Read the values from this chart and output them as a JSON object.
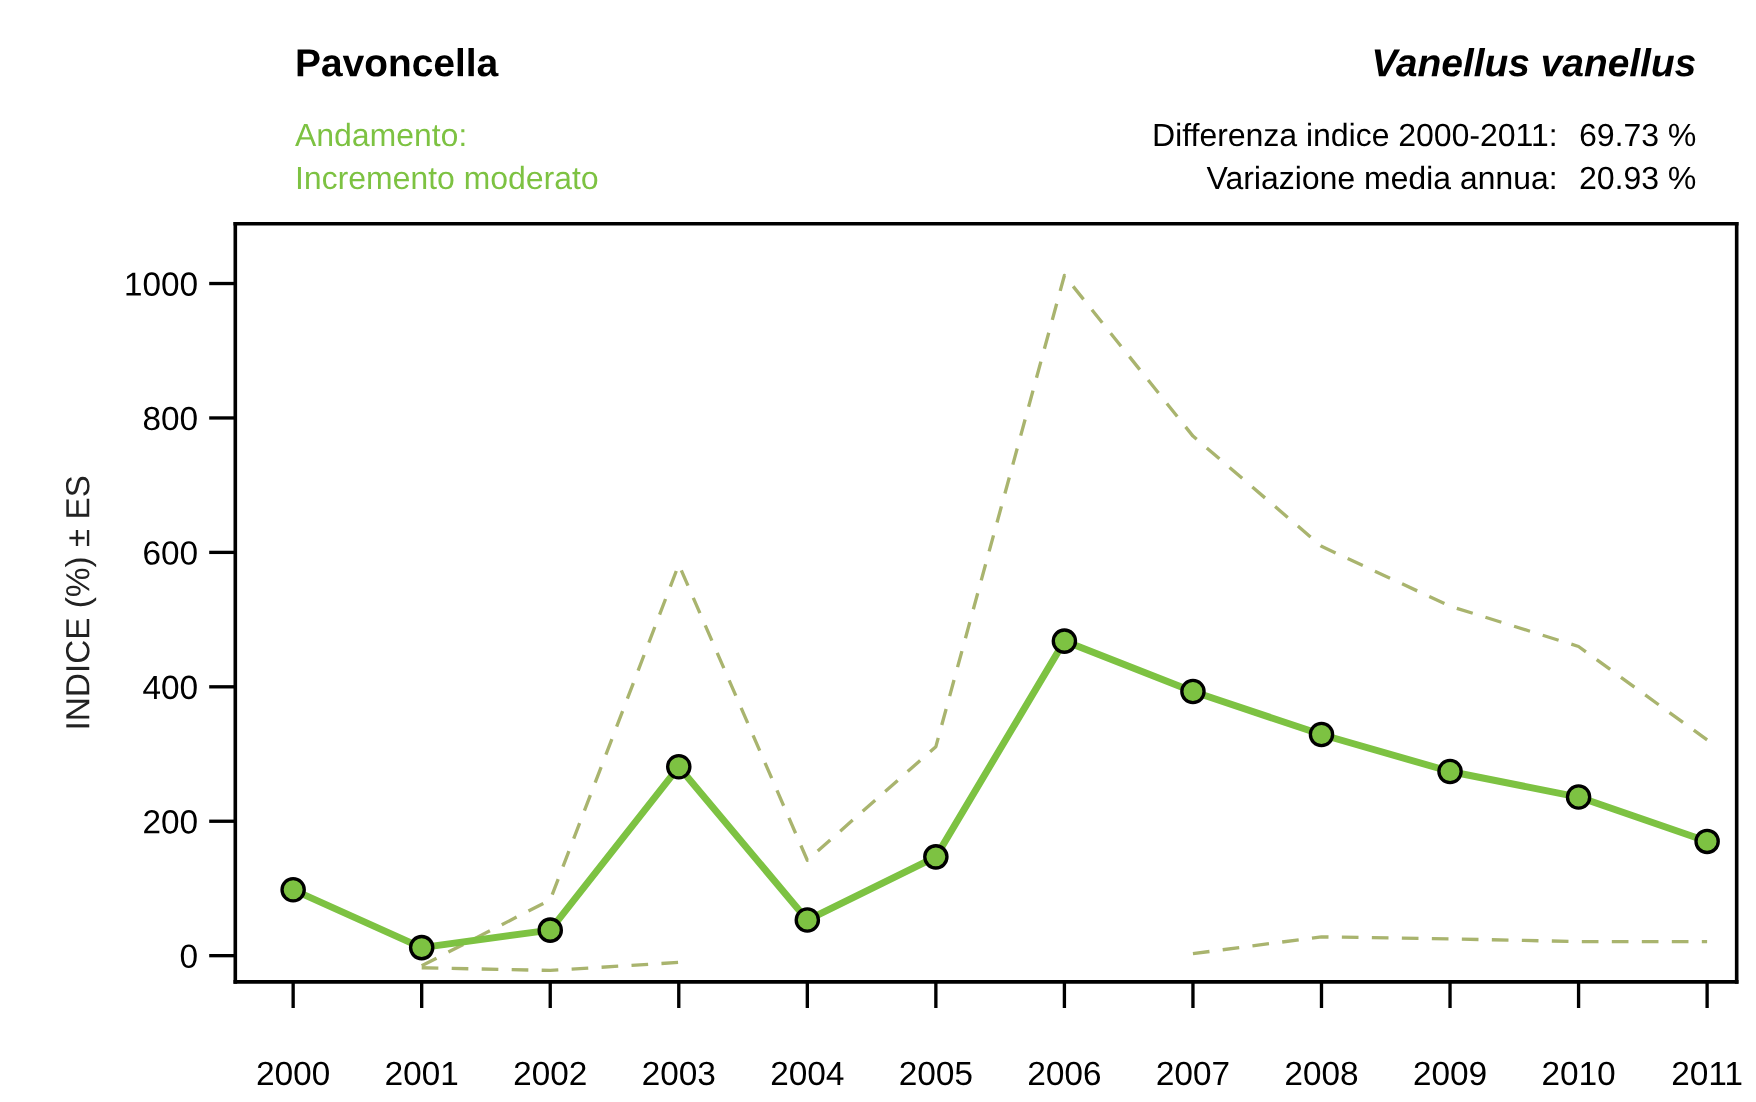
{
  "chart_data": {
    "type": "line",
    "title": "Pavoncella",
    "subtitle": "Vanellus vanellus",
    "ylabel": "INDICE (%) ± ES",
    "annotations": [
      "Andamento:",
      "Incremento moderato",
      "Differenza indice 2000-2011:",
      "69.73 %",
      "Variazione media annua:",
      "20.93 %"
    ],
    "x": [
      2000,
      2001,
      2002,
      2003,
      2004,
      2005,
      2006,
      2007,
      2008,
      2009,
      2010,
      2011
    ],
    "series": [
      {
        "color": "#a9b46e",
        "line_style": "dashed",
        "marker": "none",
        "values": [
          null,
          -15,
          83,
          582,
          142,
          311,
          1012,
          773,
          609,
          520,
          460,
          321
        ]
      },
      {
        "color": "#a9b46e",
        "line_style": "dashed",
        "marker": "none",
        "values": [
          null,
          -18,
          -22,
          -10,
          null,
          null,
          null,
          3,
          28,
          25,
          21,
          21
        ]
      },
      {
        "color": "#7dc242",
        "values": [
          98,
          12,
          38,
          281,
          53,
          147,
          468,
          393,
          329,
          274,
          236,
          170
        ]
      }
    ],
    "xlim": [
      1999.55,
      2011.23
    ],
    "ylim": [
      -39,
      1089
    ],
    "xticks": [
      2000,
      2001,
      2002,
      2003,
      2004,
      2005,
      2006,
      2007,
      2008,
      2009,
      2010,
      2011
    ],
    "yticks": [
      0,
      200,
      400,
      600,
      800,
      1000
    ],
    "marker": "circle",
    "line_style": "solid",
    "grid": false,
    "legend": false
  }
}
